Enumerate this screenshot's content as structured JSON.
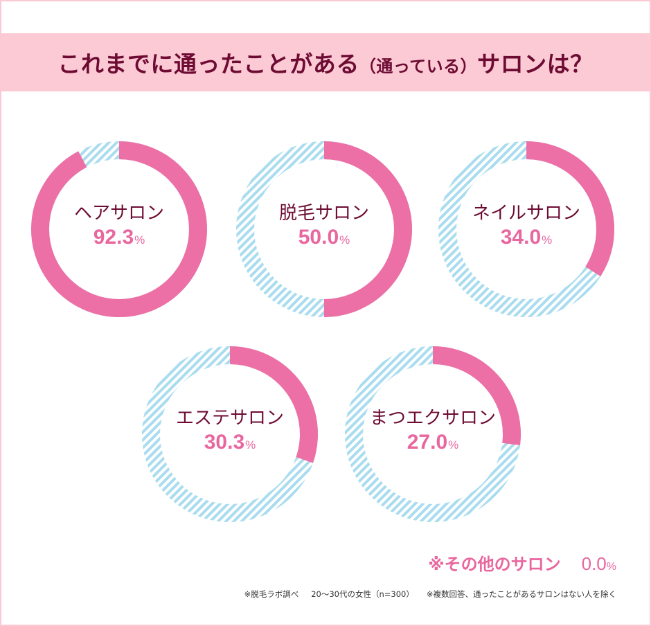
{
  "header": {
    "title_main_1": "これまでに通ったことがある",
    "title_paren": "（通っている）",
    "title_main_2": "サロンは？"
  },
  "donuts": [
    {
      "label": "ヘアサロン",
      "value": "92.3",
      "unit": "%"
    },
    {
      "label": "脱毛サロン",
      "value": "50.0",
      "unit": "%"
    },
    {
      "label": "ネイルサロン",
      "value": "34.0",
      "unit": "%"
    },
    {
      "label": "エステサロン",
      "value": "30.3",
      "unit": "%"
    },
    {
      "label": "まつエクサロン",
      "value": "27.0",
      "unit": "%"
    }
  ],
  "other": {
    "label": "※その他のサロン",
    "value": "0.0",
    "unit": "%"
  },
  "footnote": {
    "source": "※脱毛ラボ調べ",
    "sample": "20～30代の女性（n=300）",
    "note": "※複数回答、通ったことがあるサロンはない人を除く"
  },
  "colors": {
    "filled": "#ec6fa6",
    "remainder_hatch": "#a9dcee",
    "banner_bg": "#fccad5",
    "title_text": "#6d0b33",
    "value_text": "#e8679f"
  },
  "chart_data": {
    "type": "pie",
    "subtype": "donut",
    "title": "これまでに通ったことがある（通っている）サロンは？",
    "categories": [
      "ヘアサロン",
      "脱毛サロン",
      "ネイルサロン",
      "エステサロン",
      "まつエクサロン",
      "その他のサロン"
    ],
    "values": [
      92.3,
      50.0,
      34.0,
      30.3,
      27.0,
      0.0
    ],
    "unit": "%",
    "note": "Each salon shown as its own donut: filled pink arc = share, hatched light-blue = remainder",
    "source": "※脱毛ラボ調べ 20～30代の女性（n=300） ※複数回答、通ったことがあるサロンはない人を除く"
  }
}
